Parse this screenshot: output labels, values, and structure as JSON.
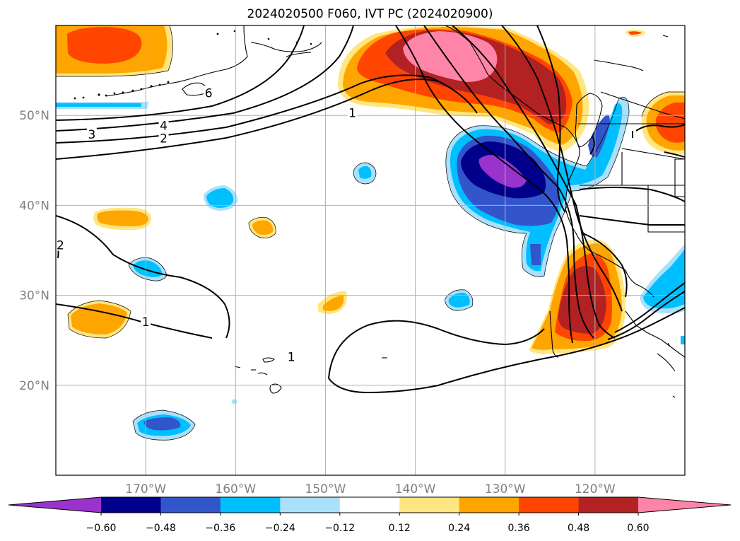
{
  "title": "2024020500 F060, IVT PC (2024020900)",
  "map": {
    "projection": "PlateCarree",
    "lon_range": [
      -180,
      -110
    ],
    "lat_range": [
      10,
      60
    ],
    "gridlines": true,
    "lon_ticks": [
      {
        "value": -170,
        "label": "170°W"
      },
      {
        "value": -160,
        "label": "160°W"
      },
      {
        "value": -150,
        "label": "150°W"
      },
      {
        "value": -140,
        "label": "140°W"
      },
      {
        "value": -130,
        "label": "130°W"
      },
      {
        "value": -120,
        "label": "120°W"
      }
    ],
    "lat_ticks": [
      {
        "value": 20,
        "label": "20°N"
      },
      {
        "value": 30,
        "label": "30°N"
      },
      {
        "value": 40,
        "label": "40°N"
      },
      {
        "value": 50,
        "label": "50°N"
      }
    ],
    "contour_labels": [
      {
        "text": "6",
        "lon": -163,
        "lat": 52.4
      },
      {
        "text": "4",
        "lon": -168,
        "lat": 48.8
      },
      {
        "text": "3",
        "lon": -176,
        "lat": 47.8
      },
      {
        "text": "2",
        "lon": -168,
        "lat": 47.4
      },
      {
        "text": "1",
        "lon": -147,
        "lat": 50.2
      },
      {
        "text": "1",
        "lon": -170,
        "lat": 27.0
      },
      {
        "text": "1",
        "lon": -153.8,
        "lat": 23.1
      },
      {
        "text": "2",
        "lon": -179.5,
        "lat": 35.5
      }
    ]
  },
  "colorbar": {
    "ticks": [
      "−0.60",
      "−0.48",
      "−0.36",
      "−0.24",
      "−0.12",
      "0.12",
      "0.24",
      "0.36",
      "0.48",
      "0.60"
    ],
    "colors": [
      "#9933cc",
      "#00008b",
      "#3355cc",
      "#00bfff",
      "#aae0fa",
      "#ffffff",
      "#ffe680",
      "#ffa500",
      "#ff4500",
      "#b22222",
      "#ff85a8"
    ],
    "extend": "both"
  }
}
